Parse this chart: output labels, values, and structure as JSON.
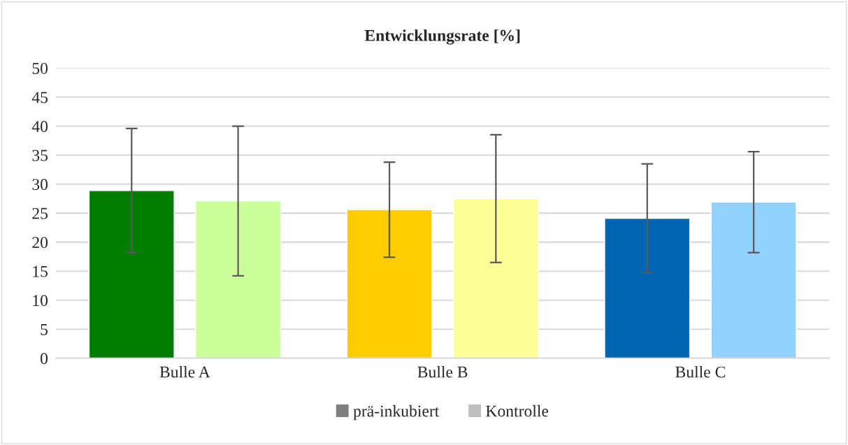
{
  "chart_data": {
    "type": "bar",
    "title": "Entwicklungsrate [%]",
    "categories": [
      "Bulle A",
      "Bulle B",
      "Bulle C"
    ],
    "series": [
      {
        "name": "prä-inkubiert",
        "color": "#7f7f7f",
        "colors": [
          "#007d00",
          "#ffcc00",
          "#0066b3"
        ],
        "values": [
          28.9,
          25.6,
          24.1
        ],
        "errors": [
          10.7,
          8.2,
          9.4
        ]
      },
      {
        "name": "Kontrolle",
        "color": "#bfbfbf",
        "colors": [
          "#ccff99",
          "#ffff99",
          "#92d0ff"
        ],
        "values": [
          27.1,
          27.5,
          26.9
        ],
        "errors": [
          12.9,
          11.0,
          8.7
        ]
      }
    ],
    "ylim": [
      0,
      50
    ],
    "yticks": [
      0,
      5,
      10,
      15,
      20,
      25,
      30,
      35,
      40,
      45,
      50
    ],
    "grid": "y",
    "legend": "bottom"
  }
}
